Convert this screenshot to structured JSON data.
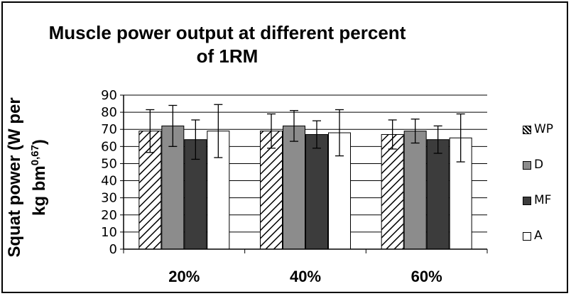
{
  "chart_data": {
    "type": "bar",
    "title": "Muscle power output at different percent of 1RM",
    "title_lines": [
      "Muscle power output at different percent",
      "of 1RM"
    ],
    "ylabel_line1": "Squat power (W per",
    "ylabel_line2": "kg bm",
    "ylabel_sup": "0,67",
    "ylabel_line2_end": ")",
    "xlabel": "",
    "categories": [
      "20%",
      "40%",
      "60%"
    ],
    "ylim": [
      0,
      90
    ],
    "yticks": [
      "0",
      "10",
      "20",
      "30",
      "40",
      "50",
      "60",
      "70",
      "80",
      "90"
    ],
    "grid": true,
    "legend_position": "right",
    "series": [
      {
        "name": "WP",
        "values": [
          69,
          69,
          67
        ],
        "errors": [
          12.5,
          10,
          8.5
        ],
        "fill": "hatched",
        "color": "#ffffff"
      },
      {
        "name": "D",
        "values": [
          72,
          72,
          69
        ],
        "errors": [
          12,
          9,
          7
        ],
        "fill": "solid",
        "color": "#8c8c8c"
      },
      {
        "name": "MF",
        "values": [
          64,
          67,
          64
        ],
        "errors": [
          11.5,
          8,
          8
        ],
        "fill": "solid",
        "color": "#3c3c3c"
      },
      {
        "name": "A",
        "values": [
          69,
          68,
          65
        ],
        "errors": [
          15.5,
          13.5,
          14
        ],
        "fill": "solid",
        "color": "#ffffff"
      }
    ]
  }
}
